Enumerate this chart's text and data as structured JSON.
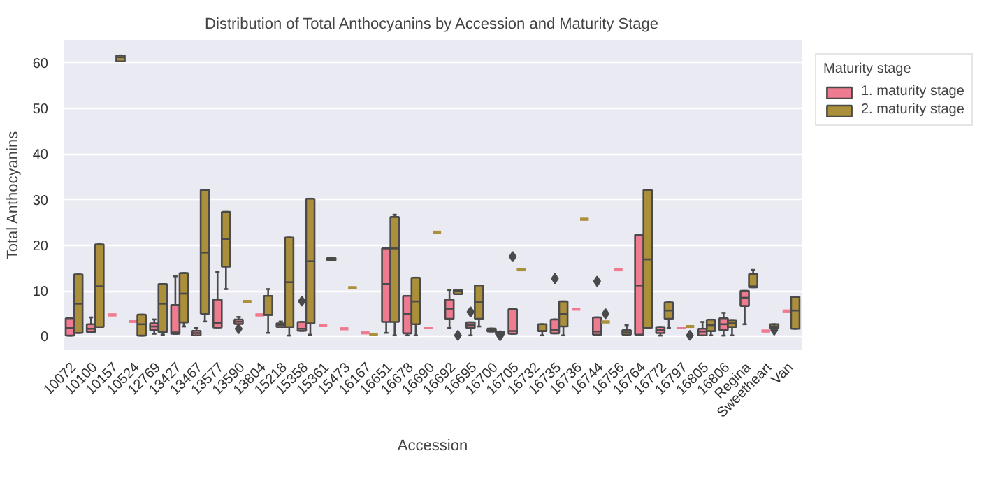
{
  "chart_data": {
    "type": "box",
    "title": "Distribution of Total Anthocyanins by Accession and Maturity Stage",
    "xlabel": "Accession",
    "ylabel": "Total Anthocyanins",
    "legend_title": "Maturity stage",
    "legend": "top right",
    "grid": "y",
    "categories": [
      "10072",
      "10100",
      "10157",
      "10524",
      "12769",
      "13427",
      "13467",
      "13577",
      "13590",
      "13804",
      "15218",
      "15358",
      "15361",
      "15473",
      "16167",
      "16651",
      "16678",
      "16690",
      "16692",
      "16695",
      "16700",
      "16705",
      "16732",
      "16735",
      "16736",
      "16744",
      "16756",
      "16764",
      "16772",
      "16797",
      "16805",
      "16806",
      "Regina",
      "Sweetheart",
      "Van"
    ],
    "ylim": [
      -3,
      65
    ],
    "yticks": [
      0,
      10,
      20,
      30,
      40,
      50,
      60
    ],
    "series": [
      {
        "name": "1. maturity stage",
        "color": "#ef7b91",
        "boxes": [
          {
            "low": 0.2,
            "q1": 0.2,
            "median": 1.9,
            "q3": 4.0,
            "high": 4.0
          },
          {
            "low": 1.0,
            "q1": 1.0,
            "median": 1.7,
            "q3": 2.7,
            "high": 4.2
          },
          {
            "low": 4.75,
            "q1": 4.75,
            "median": 4.75,
            "q3": 4.75,
            "high": 4.75
          },
          {
            "low": 3.3,
            "q1": 3.3,
            "median": 3.3,
            "q3": 3.3,
            "high": 3.3
          },
          {
            "low": 0.6,
            "q1": 1.4,
            "median": 2.2,
            "q3": 2.9,
            "high": 3.75
          },
          {
            "low": 0.6,
            "q1": 0.6,
            "median": 0.9,
            "q3": 6.9,
            "high": 13.2
          },
          {
            "low": 0.25,
            "q1": 0.25,
            "median": 0.75,
            "q3": 1.25,
            "high": 1.9
          },
          {
            "low": 2.0,
            "q1": 2.0,
            "median": 3.0,
            "q3": 8.1,
            "high": 14.2
          },
          {
            "low": 2.75,
            "q1": 2.75,
            "median": 3.25,
            "q3": 3.75,
            "high": 4.3,
            "outliers": [
              1.7
            ]
          },
          {
            "low": 4.75,
            "q1": 4.75,
            "median": 4.75,
            "q3": 4.75,
            "high": 4.75
          },
          {
            "low": 2.1,
            "q1": 2.1,
            "median": 2.5,
            "q3": 2.9,
            "high": 3.3
          },
          {
            "low": 1.25,
            "q1": 1.25,
            "median": 1.7,
            "q3": 3.2,
            "high": 3.2,
            "outliers": [
              7.75
            ]
          },
          {
            "low": 2.5,
            "q1": 2.5,
            "median": 2.5,
            "q3": 2.5,
            "high": 2.5
          },
          {
            "low": 1.7,
            "q1": 1.7,
            "median": 1.7,
            "q3": 1.7,
            "high": 1.7
          },
          {
            "low": 0.8,
            "q1": 0.8,
            "median": 0.8,
            "q3": 0.8,
            "high": 0.8
          },
          {
            "low": 0.8,
            "q1": 3.2,
            "median": 11.5,
            "q3": 19.3,
            "high": 19.3
          },
          {
            "low": 0.25,
            "q1": 0.7,
            "median": 5.0,
            "q3": 8.9,
            "high": 8.9
          },
          {
            "low": 1.9,
            "q1": 1.9,
            "median": 1.9,
            "q3": 1.9,
            "high": 1.9
          },
          {
            "low": 1.9,
            "q1": 3.9,
            "median": 6.1,
            "q3": 8.1,
            "high": 10.2
          },
          {
            "low": 0.25,
            "q1": 1.9,
            "median": 2.5,
            "q3": 3.1,
            "high": 3.1,
            "outliers": [
              5.4
            ]
          },
          {
            "low": 1.1,
            "q1": 1.1,
            "median": 1.4,
            "q3": 1.75,
            "high": 1.75
          },
          {
            "low": 0.6,
            "q1": 0.6,
            "median": 1.2,
            "q3": 6.0,
            "high": 6.0,
            "outliers": [
              17.5
            ]
          },
          null,
          {
            "low": 0.7,
            "q1": 0.7,
            "median": 1.5,
            "q3": 3.75,
            "high": 3.75,
            "outliers": [
              12.7
            ]
          },
          {
            "low": 6.0,
            "q1": 6.0,
            "median": 6.0,
            "q3": 6.0,
            "high": 6.0
          },
          {
            "low": 0.4,
            "q1": 0.4,
            "median": 1.1,
            "q3": 4.2,
            "high": 4.2,
            "outliers": [
              12.1
            ]
          },
          {
            "low": 14.6,
            "q1": 14.6,
            "median": 14.6,
            "q3": 14.6,
            "high": 14.6
          },
          {
            "low": 0.4,
            "q1": 0.4,
            "median": 11.2,
            "q3": 22.3,
            "high": 22.3
          },
          {
            "low": 0.2,
            "q1": 0.75,
            "median": 1.4,
            "q3": 2.1,
            "high": 2.1
          },
          {
            "low": 1.9,
            "q1": 1.9,
            "median": 1.9,
            "q3": 1.9,
            "high": 1.9
          },
          {
            "low": 0.25,
            "q1": 0.25,
            "median": 1.1,
            "q3": 1.7,
            "high": 3.2
          },
          {
            "low": 0.2,
            "q1": 1.4,
            "median": 2.7,
            "q3": 4.0,
            "high": 5.2
          },
          {
            "low": 2.7,
            "q1": 6.7,
            "median": 8.5,
            "q3": 10.0,
            "high": 10.0
          },
          {
            "low": 1.2,
            "q1": 1.2,
            "median": 1.2,
            "q3": 1.2,
            "high": 1.2
          },
          {
            "low": 5.6,
            "q1": 5.6,
            "median": 5.6,
            "q3": 5.6,
            "high": 5.6
          }
        ]
      },
      {
        "name": "2. maturity stage",
        "color": "#ab8f3a",
        "boxes": [
          {
            "low": 0.8,
            "q1": 0.8,
            "median": 7.2,
            "q3": 13.6,
            "high": 13.6
          },
          {
            "low": 2.1,
            "q1": 2.1,
            "median": 11.0,
            "q3": 20.2,
            "high": 20.2
          },
          {
            "low": 60.3,
            "q1": 60.3,
            "median": 61.2,
            "q3": 61.6,
            "high": 61.6
          },
          {
            "low": 0.2,
            "q1": 0.2,
            "median": 2.7,
            "q3": 4.8,
            "high": 4.8
          },
          {
            "low": 0.4,
            "q1": 1.0,
            "median": 7.2,
            "q3": 11.5,
            "high": 11.5
          },
          {
            "low": 2.2,
            "q1": 3.1,
            "median": 9.4,
            "q3": 13.9,
            "high": 13.9
          },
          {
            "low": 3.3,
            "q1": 5.0,
            "median": 18.4,
            "q3": 32.1,
            "high": 32.1
          },
          {
            "low": 10.4,
            "q1": 15.3,
            "median": 21.4,
            "q3": 27.3,
            "high": 27.3
          },
          {
            "low": 7.7,
            "q1": 7.7,
            "median": 7.7,
            "q3": 7.7,
            "high": 7.7
          },
          {
            "low": 0.8,
            "q1": 4.75,
            "median": 4.75,
            "q3": 8.9,
            "high": 10.4
          },
          {
            "low": 0.2,
            "q1": 2.1,
            "median": 11.9,
            "q3": 21.7,
            "high": 21.7
          },
          {
            "low": 0.4,
            "q1": 2.9,
            "median": 16.5,
            "q3": 30.2,
            "high": 30.2
          },
          {
            "low": 16.7,
            "q1": 16.7,
            "median": 17.0,
            "q3": 17.2,
            "high": 17.2
          },
          {
            "low": 10.7,
            "q1": 10.7,
            "median": 10.7,
            "q3": 10.7,
            "high": 10.7
          },
          {
            "low": 0.4,
            "q1": 0.4,
            "median": 0.4,
            "q3": 0.4,
            "high": 0.4
          },
          {
            "low": 0.25,
            "q1": 3.2,
            "median": 19.3,
            "q3": 26.2,
            "high": 26.7
          },
          {
            "low": 0.25,
            "q1": 2.7,
            "median": 7.7,
            "q3": 12.9,
            "high": 12.9
          },
          {
            "low": 22.9,
            "q1": 22.9,
            "median": 22.9,
            "q3": 22.9,
            "high": 22.9
          },
          {
            "low": 9.3,
            "q1": 9.3,
            "median": 9.9,
            "q3": 10.2,
            "high": 10.2,
            "outliers": [
              0.25
            ]
          },
          {
            "low": 2.2,
            "q1": 3.9,
            "median": 7.5,
            "q3": 11.2,
            "high": 11.2
          },
          {
            "low": 0.5,
            "q1": 0.5,
            "median": 0.7,
            "q3": 1.0,
            "high": 1.0,
            "outliers": [
              0.2
            ]
          },
          {
            "low": 14.6,
            "q1": 14.6,
            "median": 14.6,
            "q3": 14.6,
            "high": 14.6
          },
          {
            "low": 0.25,
            "q1": 1.2,
            "median": 1.2,
            "q3": 2.7,
            "high": 2.7
          },
          {
            "low": 0.25,
            "q1": 2.2,
            "median": 5.0,
            "q3": 7.7,
            "high": 7.7
          },
          {
            "low": 25.7,
            "q1": 25.7,
            "median": 25.7,
            "q3": 25.7,
            "high": 25.7
          },
          {
            "low": 3.2,
            "q1": 3.2,
            "median": 3.2,
            "q3": 3.2,
            "high": 3.2,
            "outliers": [
              5.0
            ]
          },
          {
            "low": 0.4,
            "q1": 0.4,
            "median": 0.9,
            "q3": 1.4,
            "high": 2.5
          },
          {
            "low": 1.9,
            "q1": 1.9,
            "median": 16.9,
            "q3": 32.1,
            "high": 32.1
          },
          {
            "low": 1.9,
            "q1": 3.9,
            "median": 5.7,
            "q3": 7.5,
            "high": 7.5
          },
          {
            "low": 2.2,
            "q1": 2.2,
            "median": 2.2,
            "q3": 2.2,
            "high": 2.2,
            "outliers": [
              0.25
            ]
          },
          {
            "low": 0.25,
            "q1": 1.2,
            "median": 2.5,
            "q3": 3.7,
            "high": 3.7
          },
          {
            "low": 0.25,
            "q1": 2.1,
            "median": 2.9,
            "q3": 3.6,
            "high": 3.6
          },
          {
            "low": 10.8,
            "q1": 10.8,
            "median": 11.0,
            "q3": 13.7,
            "high": 14.6
          },
          {
            "low": 1.9,
            "q1": 1.9,
            "median": 2.2,
            "q3": 2.7,
            "high": 2.7,
            "outliers": [
              1.4
            ]
          },
          {
            "low": 1.7,
            "q1": 1.7,
            "median": 5.7,
            "q3": 8.7,
            "high": 8.7
          }
        ]
      }
    ]
  }
}
